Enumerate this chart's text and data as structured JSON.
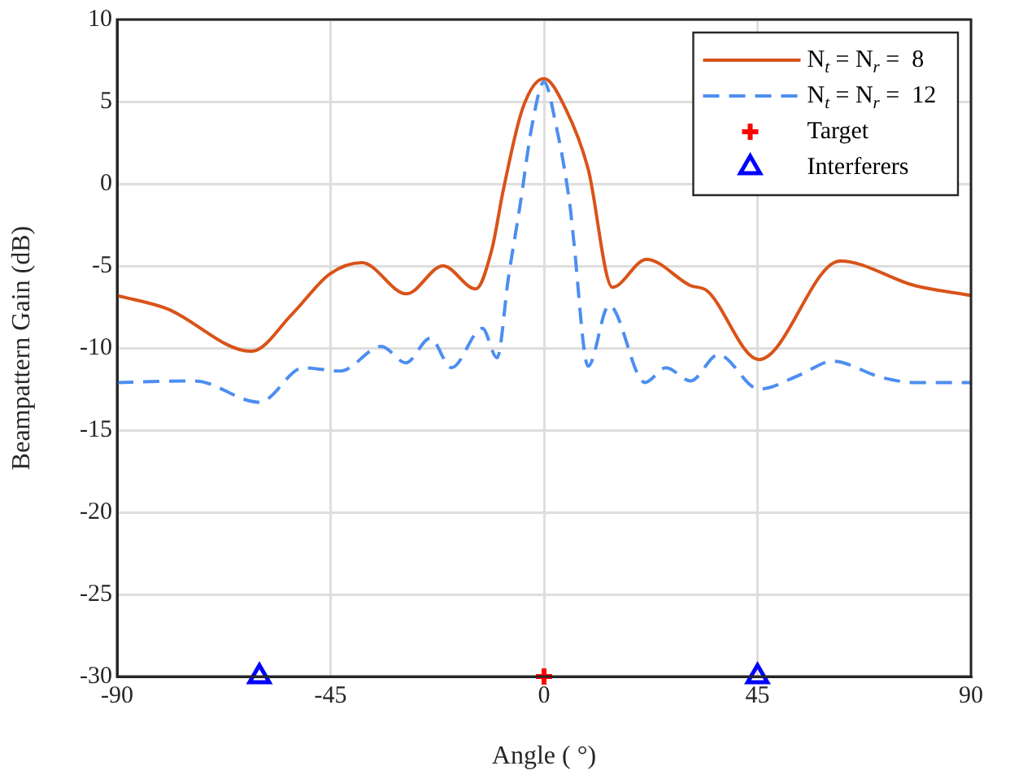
{
  "chart_data": {
    "type": "line",
    "xlabel": "Angle ( °)",
    "ylabel": "Beampattern Gain (dB)",
    "xlim": [
      -90,
      90
    ],
    "xticks": [
      -90,
      -45,
      0,
      45,
      90
    ],
    "ylim": [
      -30,
      10
    ],
    "yticks": [
      -30,
      -25,
      -20,
      -15,
      -10,
      -5,
      0,
      5,
      10
    ],
    "grid": true,
    "legend": "top right",
    "marker": "none",
    "series": [
      {
        "name": "N$_{t}$ = N$_{r}$ =  8",
        "color": "#d95319",
        "line_style": "solid",
        "x": [
          -90,
          -79.5,
          -61.7,
          -53,
          -45.2,
          -38.4,
          -29,
          -21.3,
          -14.4,
          -11,
          -8.6,
          -4.5,
          0,
          4.5,
          9.3,
          14.4,
          21.6,
          30.9,
          34.3,
          45.3,
          62.4,
          78.2,
          90
        ],
        "values": [
          -6.8,
          -7.6,
          -10.2,
          -7.9,
          -5.5,
          -4.8,
          -6.7,
          -5,
          -6.4,
          -4,
          -0.4,
          4.6,
          6.4,
          4.6,
          0.9,
          -6.3,
          -4.6,
          -6.2,
          -6.5,
          -10.7,
          -4.7,
          -6.2,
          -6.8
        ]
      },
      {
        "name": "N$_{t}$ = N$_{r}$ =  12",
        "color": "#4d8ef0",
        "line_style": "dashed",
        "x": [
          -90,
          -73.7,
          -60,
          -50.7,
          -42.9,
          -34.3,
          -29.1,
          -24,
          -19.5,
          -13,
          -9.9,
          -7.5,
          -5.1,
          -2.5,
          0,
          2.5,
          5.5,
          6.2,
          9.3,
          13.7,
          21.3,
          25.7,
          30.9,
          36.7,
          45.3,
          54.2,
          60.7,
          71.3,
          78.2,
          90
        ],
        "values": [
          -12.1,
          -12,
          -13.3,
          -11.2,
          -11.4,
          -9.9,
          -10.9,
          -9.4,
          -11.2,
          -8.8,
          -10.6,
          -5.7,
          -1.4,
          3.6,
          6.2,
          3.6,
          -1.4,
          -3.3,
          -11.1,
          -7.4,
          -12.1,
          -11.2,
          -12,
          -10.4,
          -12.5,
          -11.6,
          -10.8,
          -11.8,
          -12.1,
          -12.1
        ]
      },
      {
        "name": "Target",
        "type": "scatter",
        "color": "#ff0000",
        "marker": "cross",
        "x": [
          0
        ],
        "values": [
          -30
        ]
      },
      {
        "name": "Interferers",
        "type": "scatter",
        "color": "#0000ff",
        "marker": "triangle",
        "x": [
          -60,
          45
        ],
        "values": [
          -30,
          -30
        ]
      }
    ]
  }
}
